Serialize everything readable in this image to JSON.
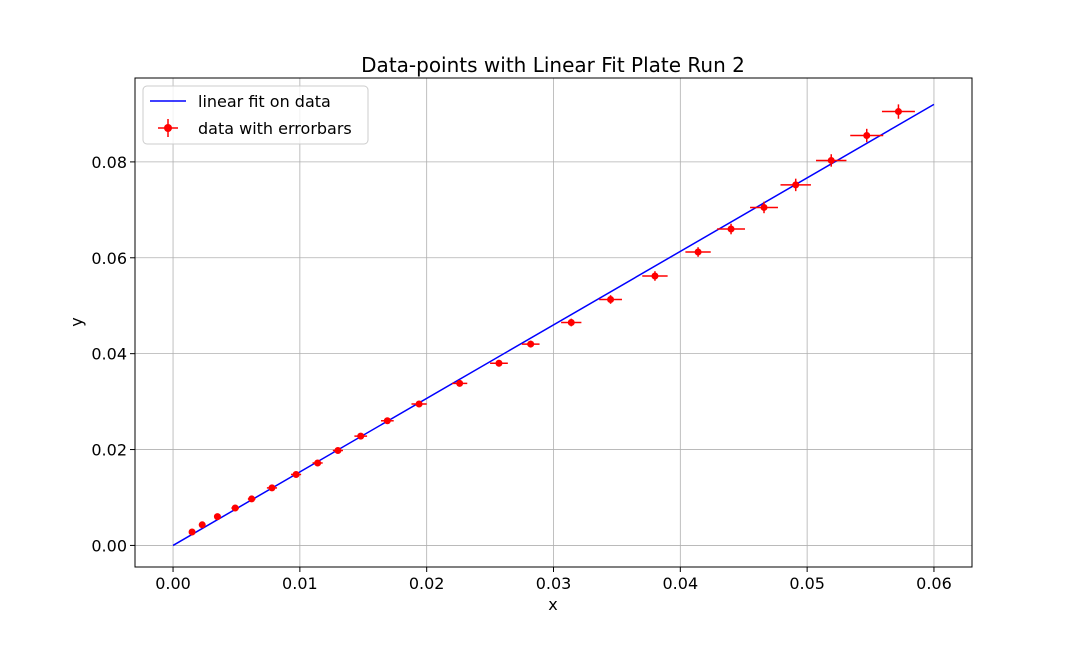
{
  "chart_data": {
    "type": "scatter",
    "title": "Data-points with Linear Fit Plate Run 2",
    "xlabel": "x",
    "ylabel": "y",
    "xlim": [
      -0.003,
      0.063
    ],
    "ylim": [
      -0.0045,
      0.0975
    ],
    "xticks": [
      0.0,
      0.01,
      0.02,
      0.03,
      0.04,
      0.05,
      0.06
    ],
    "xtick_labels": [
      "0.00",
      "0.01",
      "0.02",
      "0.03",
      "0.04",
      "0.05",
      "0.06"
    ],
    "yticks": [
      0.0,
      0.02,
      0.04,
      0.06,
      0.08
    ],
    "ytick_labels": [
      "0.00",
      "0.02",
      "0.04",
      "0.06",
      "0.08"
    ],
    "grid": true,
    "legend_position": "upper-left",
    "series": [
      {
        "name": "linear fit on data",
        "kind": "line",
        "color": "#0000ff",
        "x": [
          0.0,
          0.06
        ],
        "y": [
          0.0,
          0.092
        ]
      },
      {
        "name": "data with errorbars",
        "kind": "errorbar",
        "color": "#ff0000",
        "x": [
          0.0015,
          0.0023,
          0.0035,
          0.0049,
          0.0062,
          0.0078,
          0.0097,
          0.0114,
          0.013,
          0.0148,
          0.0169,
          0.0194,
          0.0226,
          0.0257,
          0.0282,
          0.0314,
          0.0345,
          0.038,
          0.0414,
          0.044,
          0.0466,
          0.0491,
          0.0519,
          0.0547,
          0.0572
        ],
        "y": [
          0.0028,
          0.0043,
          0.006,
          0.0078,
          0.0097,
          0.012,
          0.0148,
          0.0172,
          0.0198,
          0.0228,
          0.026,
          0.0295,
          0.0338,
          0.038,
          0.042,
          0.0465,
          0.0513,
          0.0562,
          0.0612,
          0.066,
          0.0705,
          0.0752,
          0.0803,
          0.0855,
          0.0905
        ],
        "xerr": [
          0.0002,
          0.0002,
          0.0002,
          0.0003,
          0.0003,
          0.0004,
          0.0004,
          0.0004,
          0.0004,
          0.0005,
          0.0005,
          0.0006,
          0.0006,
          0.0007,
          0.0007,
          0.0008,
          0.0009,
          0.001,
          0.001,
          0.0011,
          0.0011,
          0.0012,
          0.0012,
          0.0013,
          0.0013
        ],
        "yerr": [
          0.0002,
          0.0002,
          0.0002,
          0.0003,
          0.0003,
          0.0003,
          0.0004,
          0.0004,
          0.0004,
          0.0005,
          0.0005,
          0.0006,
          0.0006,
          0.0007,
          0.0007,
          0.0008,
          0.0009,
          0.001,
          0.001,
          0.0011,
          0.0012,
          0.0013,
          0.0013,
          0.0014,
          0.0015
        ]
      }
    ]
  }
}
